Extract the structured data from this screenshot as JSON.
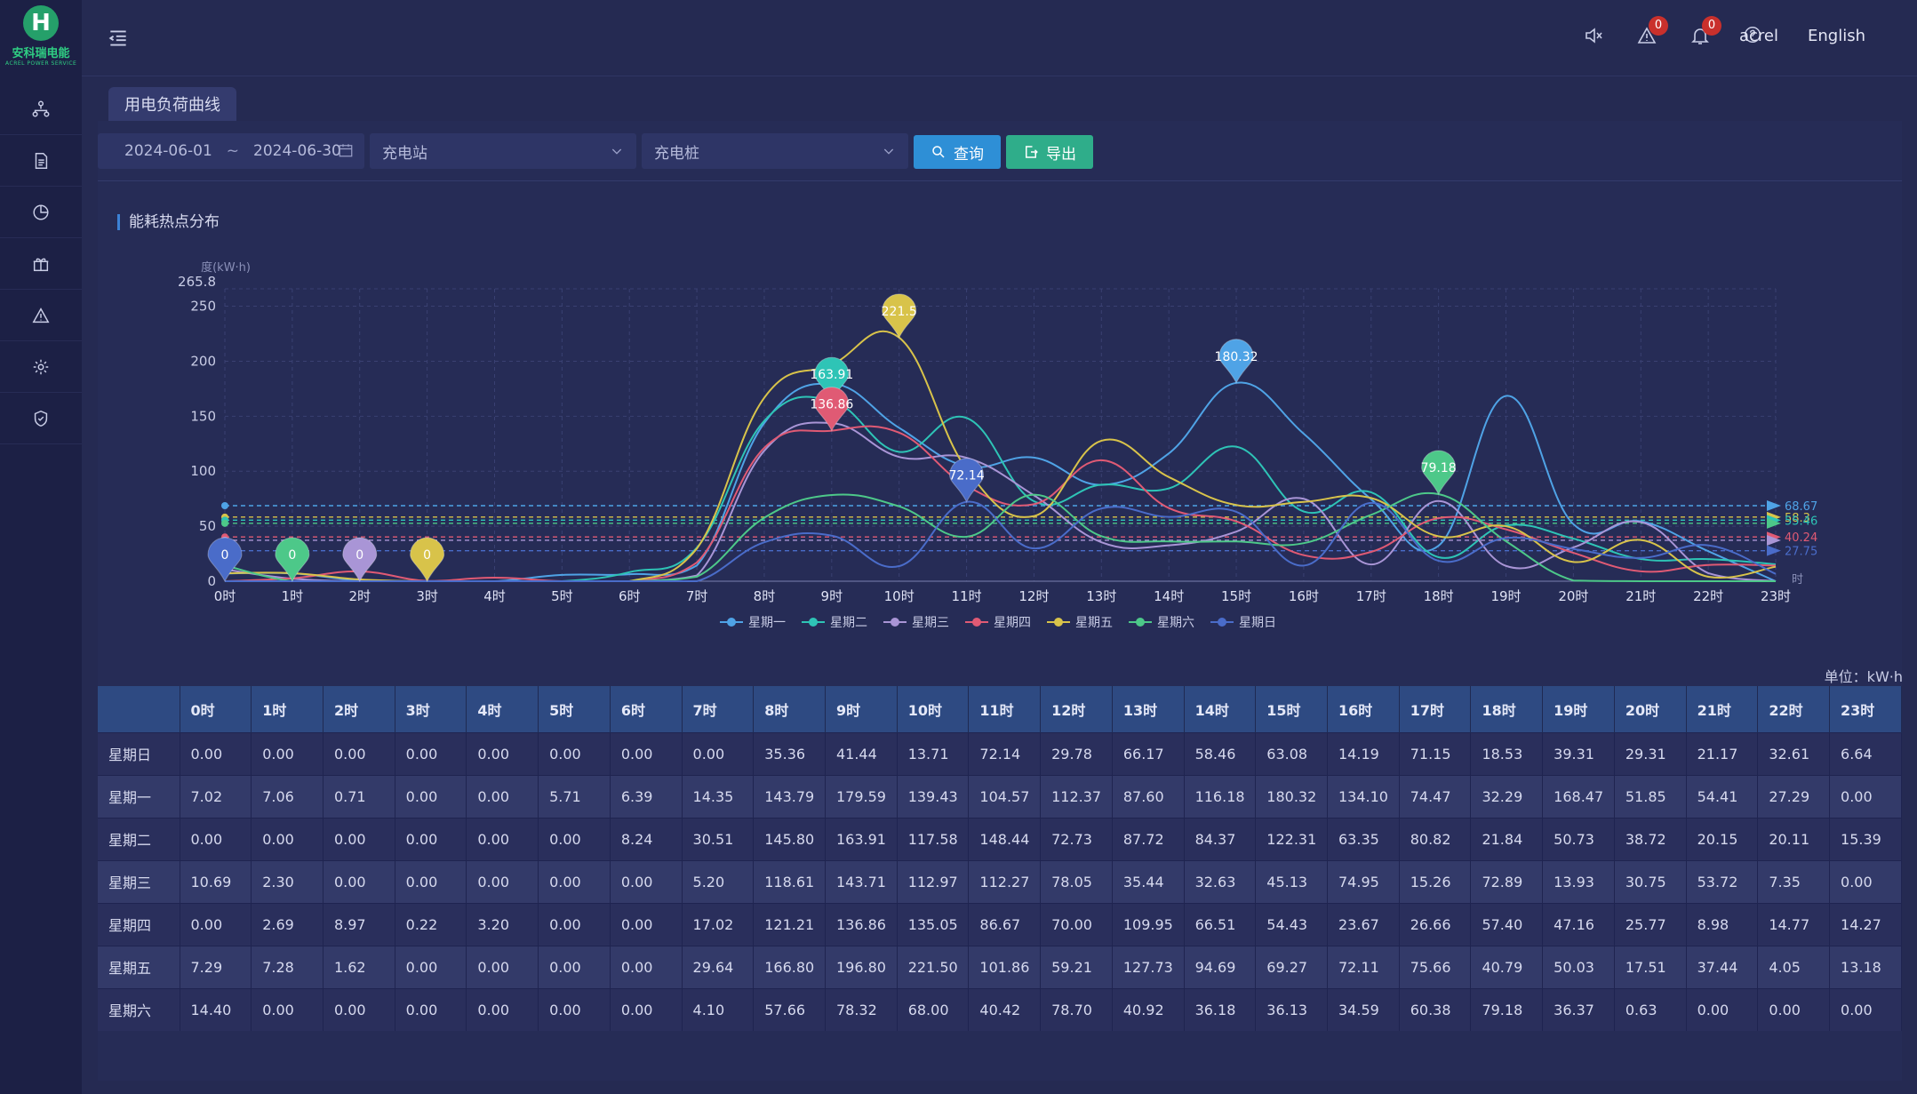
{
  "app": {
    "logo_text": "安科瑞电能",
    "logo_sub": "ACREL POWER SERVICE",
    "logo_mark": "H"
  },
  "sidebar": {
    "items": [
      {
        "icon": "network-icon"
      },
      {
        "icon": "document-icon"
      },
      {
        "icon": "pie-chart-icon"
      },
      {
        "icon": "gift-icon"
      },
      {
        "icon": "warning-icon"
      },
      {
        "icon": "gear-icon"
      },
      {
        "icon": "shield-icon"
      }
    ]
  },
  "header": {
    "alarm_count": "0",
    "notice_count": "0",
    "user": "acrel",
    "language": "English"
  },
  "tab": {
    "label": "用电负荷曲线"
  },
  "filter": {
    "date_start": "2024-06-01",
    "date_sep": "~",
    "date_end": "2024-06-30",
    "station_placeholder": "充电站",
    "pile_placeholder": "充电桩",
    "query_label": "查询",
    "export_label": "导出"
  },
  "section": {
    "title": "能耗热点分布"
  },
  "table_unit": "单位：kW·h",
  "colors": {
    "星期一": "#4fa3e6",
    "星期二": "#2ec4b6",
    "星期三": "#a995d6",
    "星期四": "#e05a74",
    "星期五": "#d8c34a",
    "星期六": "#4dc889",
    "星期日": "#4a6cc9"
  },
  "chart_data": {
    "type": "line",
    "ylabel": "度(kW·h)",
    "xlabel": "时",
    "ylim": [
      0,
      265.8
    ],
    "y_ticks": [
      0,
      50,
      100,
      150,
      200,
      250
    ],
    "y_max_label": "265.8",
    "categories": [
      "0时",
      "1时",
      "2时",
      "3时",
      "4时",
      "5时",
      "6时",
      "7时",
      "8时",
      "9时",
      "10时",
      "11时",
      "12时",
      "13时",
      "14时",
      "15时",
      "16时",
      "17时",
      "18时",
      "19时",
      "20时",
      "21时",
      "22时",
      "23时"
    ],
    "series": [
      {
        "name": "星期一",
        "values": [
          7.02,
          7.06,
          0.71,
          0.0,
          0.0,
          5.71,
          6.39,
          14.35,
          143.79,
          179.59,
          139.43,
          104.57,
          112.37,
          87.6,
          116.18,
          180.32,
          134.1,
          74.47,
          32.29,
          168.47,
          51.85,
          54.41,
          27.29,
          0.0
        ]
      },
      {
        "name": "星期二",
        "values": [
          0.0,
          0.0,
          0.0,
          0.0,
          0.0,
          0.0,
          8.24,
          30.51,
          145.8,
          163.91,
          117.58,
          148.44,
          72.73,
          87.72,
          84.37,
          122.31,
          63.35,
          80.82,
          21.84,
          50.73,
          38.72,
          20.15,
          20.11,
          15.39
        ]
      },
      {
        "name": "星期三",
        "values": [
          10.69,
          2.3,
          0.0,
          0.0,
          0.0,
          0.0,
          0.0,
          5.2,
          118.61,
          143.71,
          112.97,
          112.27,
          78.05,
          35.44,
          32.63,
          45.13,
          74.95,
          15.26,
          72.89,
          13.93,
          30.75,
          53.72,
          7.35,
          0.0
        ]
      },
      {
        "name": "星期四",
        "values": [
          0.0,
          2.69,
          8.97,
          0.22,
          3.2,
          0.0,
          0.0,
          17.02,
          121.21,
          136.86,
          135.05,
          86.67,
          70.0,
          109.95,
          66.51,
          54.43,
          23.67,
          26.66,
          57.4,
          47.16,
          25.77,
          8.98,
          14.77,
          14.27
        ]
      },
      {
        "name": "星期五",
        "values": [
          7.29,
          7.28,
          1.62,
          0.0,
          0.0,
          0.0,
          0.0,
          29.64,
          166.8,
          196.8,
          221.5,
          101.86,
          59.21,
          127.73,
          94.69,
          69.27,
          72.11,
          75.66,
          40.79,
          50.03,
          17.51,
          37.44,
          4.05,
          13.18
        ]
      },
      {
        "name": "星期六",
        "values": [
          14.4,
          0.0,
          0.0,
          0.0,
          0.0,
          0.0,
          0.0,
          4.1,
          57.66,
          78.32,
          68.0,
          40.42,
          78.7,
          40.92,
          36.18,
          36.13,
          34.59,
          60.38,
          79.18,
          36.37,
          0.63,
          0.0,
          0.0,
          0.0
        ]
      },
      {
        "name": "星期日",
        "values": [
          0.0,
          0.0,
          0.0,
          0.0,
          0.0,
          0.0,
          0.0,
          0.0,
          35.36,
          41.44,
          13.71,
          72.14,
          29.78,
          66.17,
          58.46,
          63.08,
          14.19,
          71.15,
          18.53,
          39.31,
          29.31,
          21.17,
          32.61,
          6.64
        ]
      }
    ],
    "markpoints": [
      {
        "series": "星期日",
        "x": "0时",
        "label": "0"
      },
      {
        "series": "星期六",
        "x": "1时",
        "label": "0"
      },
      {
        "series": "星期三",
        "x": "2时",
        "label": "0"
      },
      {
        "series": "星期五",
        "x": "3时",
        "label": "0"
      },
      {
        "series": "星期二",
        "x": "9时",
        "label": "163.91"
      },
      {
        "series": "星期四",
        "x": "9时",
        "label": "136.86"
      },
      {
        "series": "星期五",
        "x": "10时",
        "label": "221.5"
      },
      {
        "series": "星期日",
        "x": "11时",
        "label": "72.14"
      },
      {
        "series": "星期一",
        "x": "15时",
        "label": "180.32"
      },
      {
        "series": "星期六",
        "x": "18时",
        "label": "79.18"
      }
    ],
    "average_lines": [
      {
        "series": "星期一",
        "value": 68.67,
        "label": "68.67"
      },
      {
        "series": "星期五",
        "value": 58.3,
        "label": "58.3"
      },
      {
        "series": "星期二",
        "value": 55.46,
        "label": "55.46"
      },
      {
        "series": "星期六",
        "value": 52.66,
        "label": ""
      },
      {
        "series": "星期四",
        "value": 40.24,
        "label": "40.24"
      },
      {
        "series": "星期三",
        "value": 37.21,
        "label": ""
      },
      {
        "series": "星期日",
        "value": 27.75,
        "label": "27.75"
      }
    ]
  },
  "table": {
    "corner": "",
    "columns": [
      "0时",
      "1时",
      "2时",
      "3时",
      "4时",
      "5时",
      "6时",
      "7时",
      "8时",
      "9时",
      "10时",
      "11时",
      "12时",
      "13时",
      "14时",
      "15时",
      "16时",
      "17时",
      "18时",
      "19时",
      "20时",
      "21时",
      "22时",
      "23时"
    ],
    "rows": [
      {
        "label": "星期日",
        "cells": [
          "0.00",
          "0.00",
          "0.00",
          "0.00",
          "0.00",
          "0.00",
          "0.00",
          "0.00",
          "35.36",
          "41.44",
          "13.71",
          "72.14",
          "29.78",
          "66.17",
          "58.46",
          "63.08",
          "14.19",
          "71.15",
          "18.53",
          "39.31",
          "29.31",
          "21.17",
          "32.61",
          "6.64"
        ]
      },
      {
        "label": "星期一",
        "cells": [
          "7.02",
          "7.06",
          "0.71",
          "0.00",
          "0.00",
          "5.71",
          "6.39",
          "14.35",
          "143.79",
          "179.59",
          "139.43",
          "104.57",
          "112.37",
          "87.60",
          "116.18",
          "180.32",
          "134.10",
          "74.47",
          "32.29",
          "168.47",
          "51.85",
          "54.41",
          "27.29",
          "0.00"
        ]
      },
      {
        "label": "星期二",
        "cells": [
          "0.00",
          "0.00",
          "0.00",
          "0.00",
          "0.00",
          "0.00",
          "8.24",
          "30.51",
          "145.80",
          "163.91",
          "117.58",
          "148.44",
          "72.73",
          "87.72",
          "84.37",
          "122.31",
          "63.35",
          "80.82",
          "21.84",
          "50.73",
          "38.72",
          "20.15",
          "20.11",
          "15.39"
        ]
      },
      {
        "label": "星期三",
        "cells": [
          "10.69",
          "2.30",
          "0.00",
          "0.00",
          "0.00",
          "0.00",
          "0.00",
          "5.20",
          "118.61",
          "143.71",
          "112.97",
          "112.27",
          "78.05",
          "35.44",
          "32.63",
          "45.13",
          "74.95",
          "15.26",
          "72.89",
          "13.93",
          "30.75",
          "53.72",
          "7.35",
          "0.00"
        ]
      },
      {
        "label": "星期四",
        "cells": [
          "0.00",
          "2.69",
          "8.97",
          "0.22",
          "3.20",
          "0.00",
          "0.00",
          "17.02",
          "121.21",
          "136.86",
          "135.05",
          "86.67",
          "70.00",
          "109.95",
          "66.51",
          "54.43",
          "23.67",
          "26.66",
          "57.40",
          "47.16",
          "25.77",
          "8.98",
          "14.77",
          "14.27"
        ]
      },
      {
        "label": "星期五",
        "cells": [
          "7.29",
          "7.28",
          "1.62",
          "0.00",
          "0.00",
          "0.00",
          "0.00",
          "29.64",
          "166.80",
          "196.80",
          "221.50",
          "101.86",
          "59.21",
          "127.73",
          "94.69",
          "69.27",
          "72.11",
          "75.66",
          "40.79",
          "50.03",
          "17.51",
          "37.44",
          "4.05",
          "13.18"
        ]
      },
      {
        "label": "星期六",
        "cells": [
          "14.40",
          "0.00",
          "0.00",
          "0.00",
          "0.00",
          "0.00",
          "0.00",
          "4.10",
          "57.66",
          "78.32",
          "68.00",
          "40.42",
          "78.70",
          "40.92",
          "36.18",
          "36.13",
          "34.59",
          "60.38",
          "79.18",
          "36.37",
          "0.63",
          "0.00",
          "0.00",
          "0.00"
        ]
      }
    ]
  }
}
